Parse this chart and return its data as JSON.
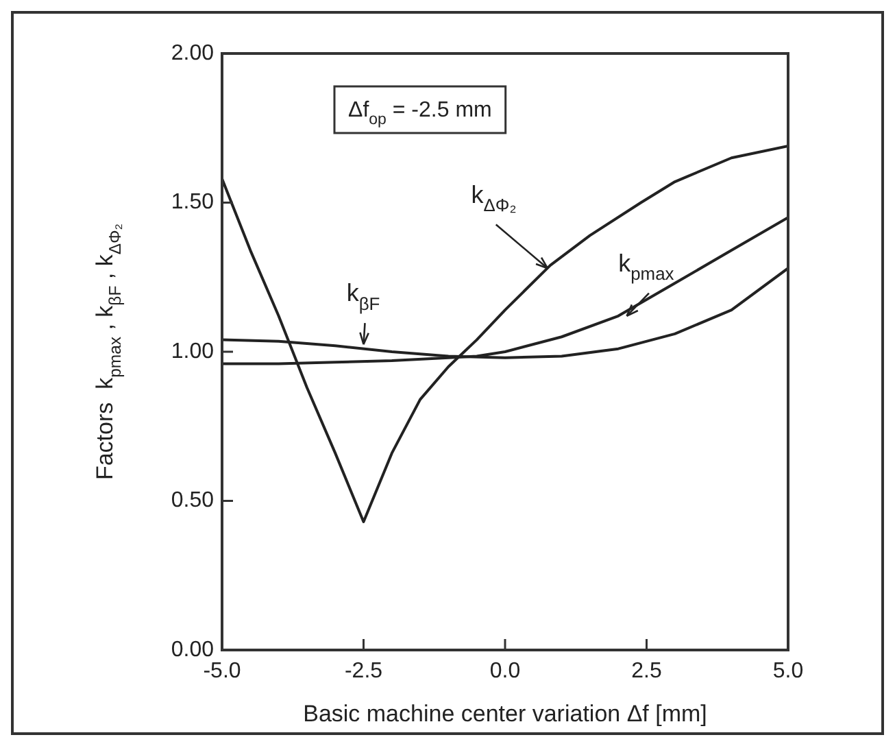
{
  "chart_data": {
    "type": "line",
    "xlabel": "Basic machine center variation Δf [mm]",
    "ylabel": "Factors  k$_{pmax}$ , k$_{βF}$ , k$_{ΔΦ₂}$",
    "annotations": [
      "Δf$_{op}$ = -2.5 mm"
    ],
    "series": [
      {
        "name": "k$_{ΔΦ₂}$",
        "color": "#222222",
        "x": [
          -5,
          -4.5,
          -4,
          -3.5,
          -3,
          -2.5,
          -2,
          -1.5,
          -1,
          -0.5,
          0,
          0.8,
          1.5,
          2.4,
          3,
          4,
          5
        ],
        "values": [
          1.58,
          1.34,
          1.12,
          0.88,
          0.66,
          0.43,
          0.66,
          0.84,
          0.95,
          1.04,
          1.14,
          1.29,
          1.39,
          1.5,
          1.57,
          1.65,
          1.69
        ]
      },
      {
        "name": "k$_{pmax}$",
        "color": "#222222",
        "x": [
          -5,
          -4,
          -3,
          -2,
          -1,
          -0.5,
          0,
          1,
          2,
          3,
          4,
          5
        ],
        "values": [
          0.96,
          0.96,
          0.965,
          0.97,
          0.98,
          0.985,
          1.0,
          1.05,
          1.12,
          1.23,
          1.34,
          1.45
        ]
      },
      {
        "name": "k$_{βF}$",
        "color": "#222222",
        "x": [
          -5,
          -4,
          -3,
          -2,
          -1,
          0,
          1,
          2,
          3,
          4,
          5
        ],
        "values": [
          1.04,
          1.035,
          1.02,
          1.0,
          0.985,
          0.98,
          0.985,
          1.01,
          1.06,
          1.14,
          1.28
        ]
      }
    ],
    "xlim": [
      -5,
      5
    ],
    "xticks": [
      {
        "value": -5,
        "label": "-5.0"
      },
      {
        "value": -2.5,
        "label": "-2.5"
      },
      {
        "value": 0,
        "label": "0.0"
      },
      {
        "value": 2.5,
        "label": "2.5"
      },
      {
        "value": 5,
        "label": "5.0"
      }
    ],
    "ylim": [
      0,
      2
    ],
    "yticks": [
      {
        "value": 0,
        "label": "0.00"
      },
      {
        "value": 0.5,
        "label": "0.50"
      },
      {
        "value": 1,
        "label": "1.00"
      },
      {
        "value": 1.5,
        "label": "1.50"
      },
      {
        "value": 2,
        "label": "2.00"
      }
    ],
    "grid": false,
    "legend": false,
    "marker": "none",
    "line_style": "solid"
  }
}
